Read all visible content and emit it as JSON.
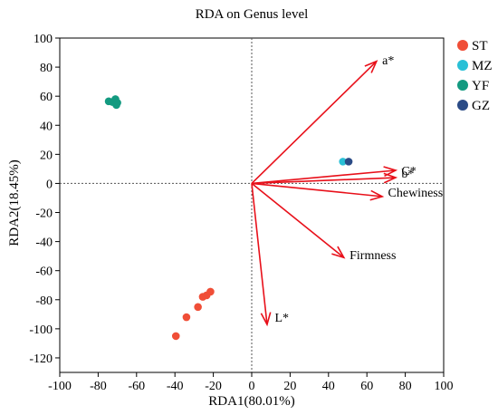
{
  "chart_data": {
    "type": "scatter",
    "title": "RDA on Genus level",
    "xlabel": "RDA1(80.01%)",
    "ylabel": "RDA2(18.45%)",
    "xlim": [
      -100,
      100
    ],
    "ylim": [
      -130,
      100
    ],
    "xticks": [
      -100,
      -80,
      -60,
      -40,
      -20,
      0,
      20,
      40,
      60,
      80,
      100
    ],
    "yticks": [
      -120,
      -100,
      -80,
      -60,
      -40,
      -20,
      0,
      20,
      40,
      60,
      80,
      100
    ],
    "reference_lines": {
      "x": 0,
      "y": 0,
      "style": "dotted"
    },
    "legend_position": "top-right",
    "series": [
      {
        "name": "ST",
        "color": "#f04e37",
        "points": [
          {
            "x": -39.5,
            "y": -105
          },
          {
            "x": -34,
            "y": -92
          },
          {
            "x": -28,
            "y": -85
          },
          {
            "x": -25.5,
            "y": -78
          },
          {
            "x": -23.5,
            "y": -77
          },
          {
            "x": -21.5,
            "y": -74.5
          }
        ]
      },
      {
        "name": "MZ",
        "color": "#29c0d6",
        "points": [
          {
            "x": 47.5,
            "y": 15
          }
        ]
      },
      {
        "name": "YF",
        "color": "#139a80",
        "points": [
          {
            "x": -74.5,
            "y": 56.5
          },
          {
            "x": -72.5,
            "y": 56
          },
          {
            "x": -71,
            "y": 58
          },
          {
            "x": -70,
            "y": 55.5
          },
          {
            "x": -70.5,
            "y": 54
          }
        ]
      },
      {
        "name": "GZ",
        "color": "#2b4b86",
        "points": [
          {
            "x": 50.5,
            "y": 15
          }
        ]
      }
    ],
    "arrows": [
      {
        "label": "a*",
        "x": 65,
        "y": 84,
        "label_x": 68,
        "label_y": 85
      },
      {
        "label": "C*",
        "x": 75,
        "y": 9,
        "label_x": 78,
        "label_y": 9
      },
      {
        "label": "b*",
        "x": 75,
        "y": 4,
        "label_x": 78,
        "label_y": 7
      },
      {
        "label": "Chewiness",
        "x": 68,
        "y": -9,
        "label_x": 71,
        "label_y": -6
      },
      {
        "label": "Firmness",
        "x": 48,
        "y": -51,
        "label_x": 51,
        "label_y": -49
      },
      {
        "label": "L*",
        "x": 8,
        "y": -97,
        "label_x": 12,
        "label_y": -92
      }
    ],
    "arrow_color": "#e8101a"
  }
}
